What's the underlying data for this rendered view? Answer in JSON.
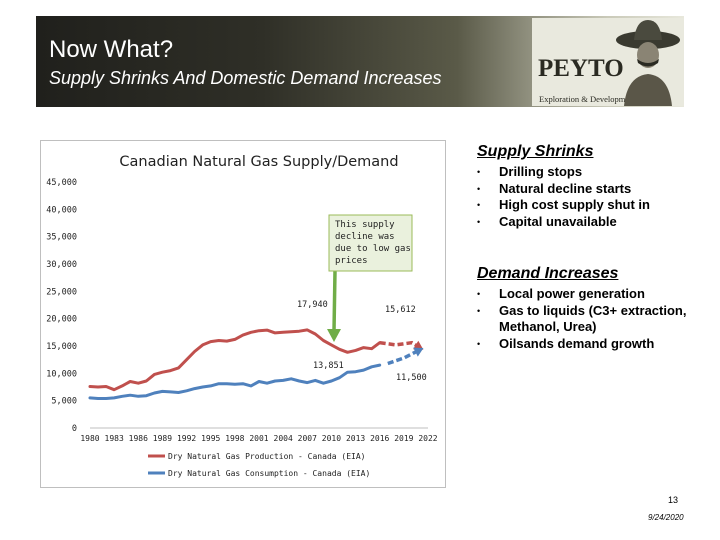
{
  "header": {
    "title": "Now What?",
    "subtitle": "Supply Shrinks And Domestic Demand Increases"
  },
  "logo": {
    "name": "PEYTO",
    "tagline": "Exploration & Development Corp."
  },
  "colors": {
    "production": "#c0504d",
    "consumption": "#4f81bd",
    "callout_fill": "#eaf1dd",
    "callout_border": "#9bbb59",
    "arrow": "#70ad47"
  },
  "chart_data": {
    "type": "line",
    "title": "Canadian Natural Gas Supply/Demand",
    "xlim": [
      1980,
      2022
    ],
    "ylim": [
      0,
      45000
    ],
    "y_ticks": [
      "0",
      "5,000",
      "10,000",
      "15,000",
      "20,000",
      "25,000",
      "30,000",
      "35,000",
      "40,000",
      "45,000"
    ],
    "x_ticks": [
      "1980",
      "1983",
      "1986",
      "1989",
      "1992",
      "1995",
      "1998",
      "2001",
      "2004",
      "2007",
      "2010",
      "2013",
      "2016",
      "2019",
      "2022"
    ],
    "series": [
      {
        "name": "Dry Natural Gas Production - Canada (EIA)",
        "x": [
          1980,
          1981,
          1982,
          1983,
          1984,
          1985,
          1986,
          1987,
          1988,
          1989,
          1990,
          1991,
          1992,
          1993,
          1994,
          1995,
          1996,
          1997,
          1998,
          1999,
          2000,
          2001,
          2002,
          2003,
          2004,
          2005,
          2006,
          2007,
          2008,
          2009,
          2010,
          2011,
          2012,
          2013,
          2014,
          2015,
          2016
        ],
        "values": [
          7600,
          7500,
          7600,
          7000,
          7700,
          8500,
          8200,
          8600,
          9800,
          10200,
          10500,
          11000,
          12500,
          14000,
          15200,
          15800,
          16000,
          15900,
          16200,
          17000,
          17500,
          17800,
          17900,
          17400,
          17500,
          17600,
          17700,
          17940,
          17200,
          16000,
          15200,
          14400,
          13851,
          14200,
          14700,
          14500,
          15612
        ]
      },
      {
        "name": "Dry Natural Gas Consumption - Canada (EIA)",
        "x": [
          1980,
          1981,
          1982,
          1983,
          1984,
          1985,
          1986,
          1987,
          1988,
          1989,
          1990,
          1991,
          1992,
          1993,
          1994,
          1995,
          1996,
          1997,
          1998,
          1999,
          2000,
          2001,
          2002,
          2003,
          2004,
          2005,
          2006,
          2007,
          2008,
          2009,
          2010,
          2011,
          2012,
          2013,
          2014,
          2015,
          2016
        ],
        "values": [
          5500,
          5400,
          5400,
          5500,
          5800,
          6000,
          5800,
          5900,
          6400,
          6700,
          6600,
          6500,
          6800,
          7200,
          7500,
          7700,
          8100,
          8100,
          8000,
          8100,
          7700,
          8500,
          8200,
          8600,
          8700,
          9000,
          8600,
          8300,
          8700,
          8200,
          8600,
          9200,
          10200,
          10300,
          10600,
          11200,
          11500
        ]
      }
    ],
    "projections": [
      {
        "name": "Production projection",
        "x": [
          2016,
          2018,
          2020,
          2021
        ],
        "values": [
          15612,
          15200,
          15600,
          14700
        ]
      },
      {
        "name": "Consumption projection",
        "x": [
          2017,
          2019,
          2021
        ],
        "values": [
          11800,
          12800,
          14300
        ]
      }
    ],
    "annotations": {
      "callout": "This supply decline was due to low gas prices",
      "peak_label": "17,940",
      "latest_production_label": "15,612",
      "trough_label": "13,851",
      "consumption_label": "11,500"
    }
  },
  "supply": {
    "heading": "Supply Shrinks",
    "items": [
      "Drilling stops",
      "Natural decline starts",
      "High cost supply shut in",
      "Capital unavailable"
    ]
  },
  "demand": {
    "heading": "Demand Increases",
    "items": [
      "Local power generation",
      "Gas to liquids (C3+ extraction, Methanol, Urea)",
      "Oilsands demand growth"
    ]
  },
  "footer": {
    "page": "13",
    "date": "9/24/2020"
  }
}
